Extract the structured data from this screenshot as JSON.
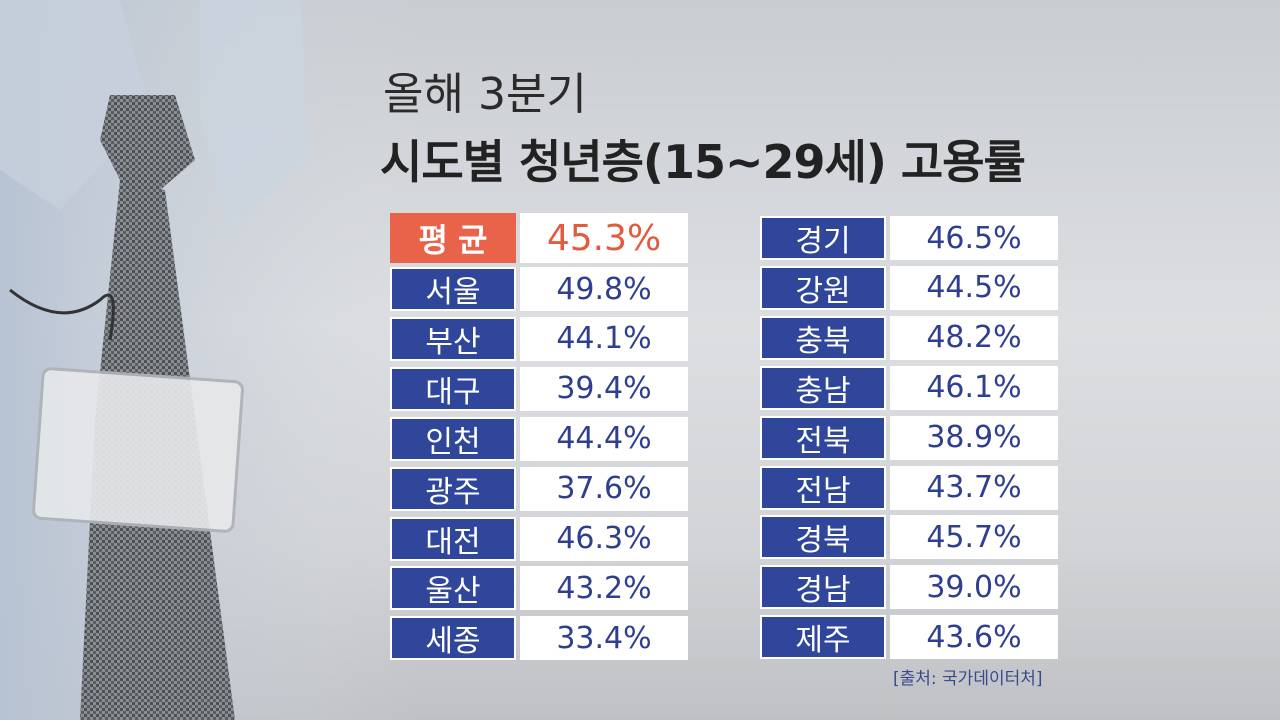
{
  "header": {
    "subtitle": "올해 3분기",
    "title": "시도별 청년층(15~29세) 고용률"
  },
  "average": {
    "label": "평균",
    "value": "45.3%"
  },
  "left_table": {
    "rows": [
      [
        "서울",
        "49.8%"
      ],
      [
        "부산",
        "44.1%"
      ],
      [
        "대구",
        "39.4%"
      ],
      [
        "인천",
        "44.4%"
      ],
      [
        "광주",
        "37.6%"
      ],
      [
        "대전",
        "46.3%"
      ],
      [
        "울산",
        "43.2%"
      ],
      [
        "세종",
        "33.4%"
      ]
    ]
  },
  "right_table": {
    "rows": [
      [
        "경기",
        "46.5%"
      ],
      [
        "강원",
        "44.5%"
      ],
      [
        "충북",
        "48.2%"
      ],
      [
        "충남",
        "46.1%"
      ],
      [
        "전북",
        "38.9%"
      ],
      [
        "전남",
        "43.7%"
      ],
      [
        "경북",
        "45.7%"
      ],
      [
        "경남",
        "39.0%"
      ],
      [
        "제주",
        "43.6%"
      ]
    ]
  },
  "source": "[출처: 국가데이터처]"
}
